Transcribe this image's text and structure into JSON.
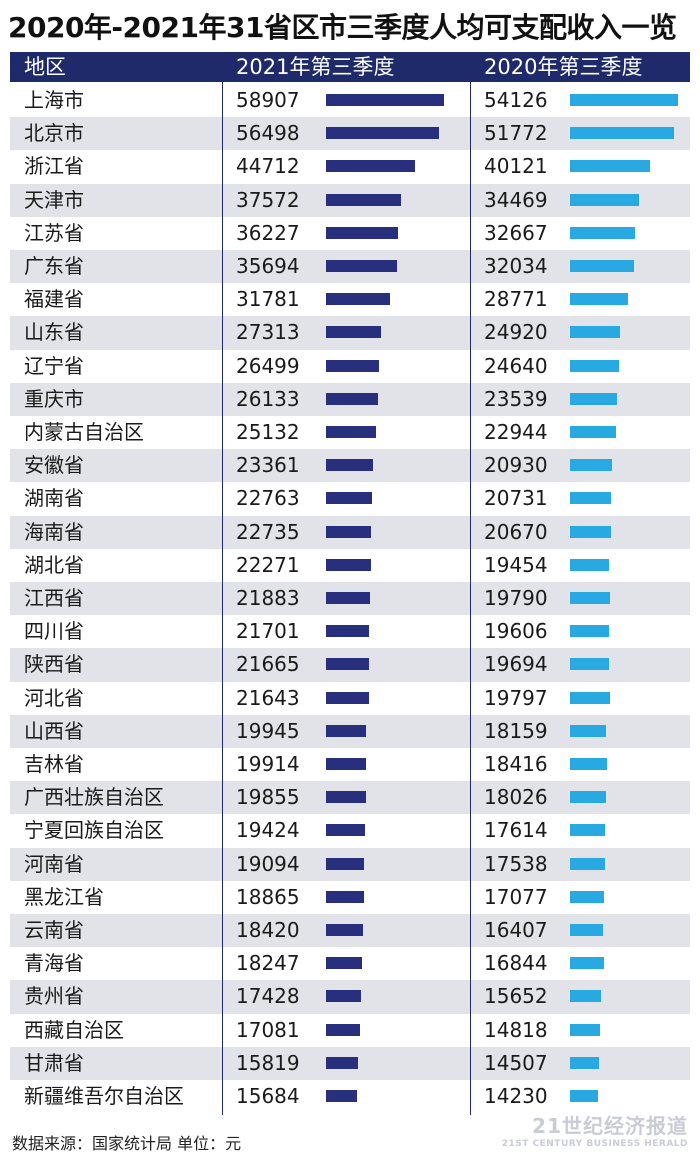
{
  "title": "2020年-2021年31省区市三季度人均可支配收入一览",
  "header": {
    "region": "地区",
    "col2021": "2021年第三季度",
    "col2020": "2020年第三季度"
  },
  "colors": {
    "header_bg": "#1f2a6b",
    "bar_2021": "#28307e",
    "bar_2020": "#29a9e1",
    "row_alt": "#e2e3e8"
  },
  "chart_data": {
    "type": "table",
    "columns": [
      "地区",
      "2021年第三季度",
      "2020年第三季度"
    ],
    "rows": [
      {
        "region": "上海市",
        "v2021": 58907,
        "v2020": 54126
      },
      {
        "region": "北京市",
        "v2021": 56498,
        "v2020": 51772
      },
      {
        "region": "浙江省",
        "v2021": 44712,
        "v2020": 40121
      },
      {
        "region": "天津市",
        "v2021": 37572,
        "v2020": 34469
      },
      {
        "region": "江苏省",
        "v2021": 36227,
        "v2020": 32667
      },
      {
        "region": "广东省",
        "v2021": 35694,
        "v2020": 32034
      },
      {
        "region": "福建省",
        "v2021": 31781,
        "v2020": 28771
      },
      {
        "region": "山东省",
        "v2021": 27313,
        "v2020": 24920
      },
      {
        "region": "辽宁省",
        "v2021": 26499,
        "v2020": 24640
      },
      {
        "region": "重庆市",
        "v2021": 26133,
        "v2020": 23539
      },
      {
        "region": "内蒙古自治区",
        "v2021": 25132,
        "v2020": 22944
      },
      {
        "region": "安徽省",
        "v2021": 23361,
        "v2020": 20930
      },
      {
        "region": "湖南省",
        "v2021": 22763,
        "v2020": 20731
      },
      {
        "region": "海南省",
        "v2021": 22735,
        "v2020": 20670
      },
      {
        "region": "湖北省",
        "v2021": 22271,
        "v2020": 19454
      },
      {
        "region": "江西省",
        "v2021": 21883,
        "v2020": 19790
      },
      {
        "region": "四川省",
        "v2021": 21701,
        "v2020": 19606
      },
      {
        "region": "陕西省",
        "v2021": 21665,
        "v2020": 19694
      },
      {
        "region": "河北省",
        "v2021": 21643,
        "v2020": 19797
      },
      {
        "region": "山西省",
        "v2021": 19945,
        "v2020": 18159
      },
      {
        "region": "吉林省",
        "v2021": 19914,
        "v2020": 18416
      },
      {
        "region": "广西壮族自治区",
        "v2021": 19855,
        "v2020": 18026
      },
      {
        "region": "宁夏回族自治区",
        "v2021": 19424,
        "v2020": 17614
      },
      {
        "region": "河南省",
        "v2021": 19094,
        "v2020": 17538
      },
      {
        "region": "黑龙江省",
        "v2021": 18865,
        "v2020": 17077
      },
      {
        "region": "云南省",
        "v2021": 18420,
        "v2020": 16407
      },
      {
        "region": "青海省",
        "v2021": 18247,
        "v2020": 16844
      },
      {
        "region": "贵州省",
        "v2021": 17428,
        "v2020": 15652
      },
      {
        "region": "西藏自治区",
        "v2021": 17081,
        "v2020": 14818
      },
      {
        "region": "甘肃省",
        "v2021": 15819,
        "v2020": 14507
      },
      {
        "region": "新疆维吾尔自治区",
        "v2021": 15684,
        "v2020": 14230
      }
    ]
  },
  "footer": {
    "source": "数据来源：国家统计局  单位：元"
  },
  "watermark": {
    "cn": "21世纪经济报道",
    "en": "21ST CENTURY BUSINESS HERALD"
  }
}
